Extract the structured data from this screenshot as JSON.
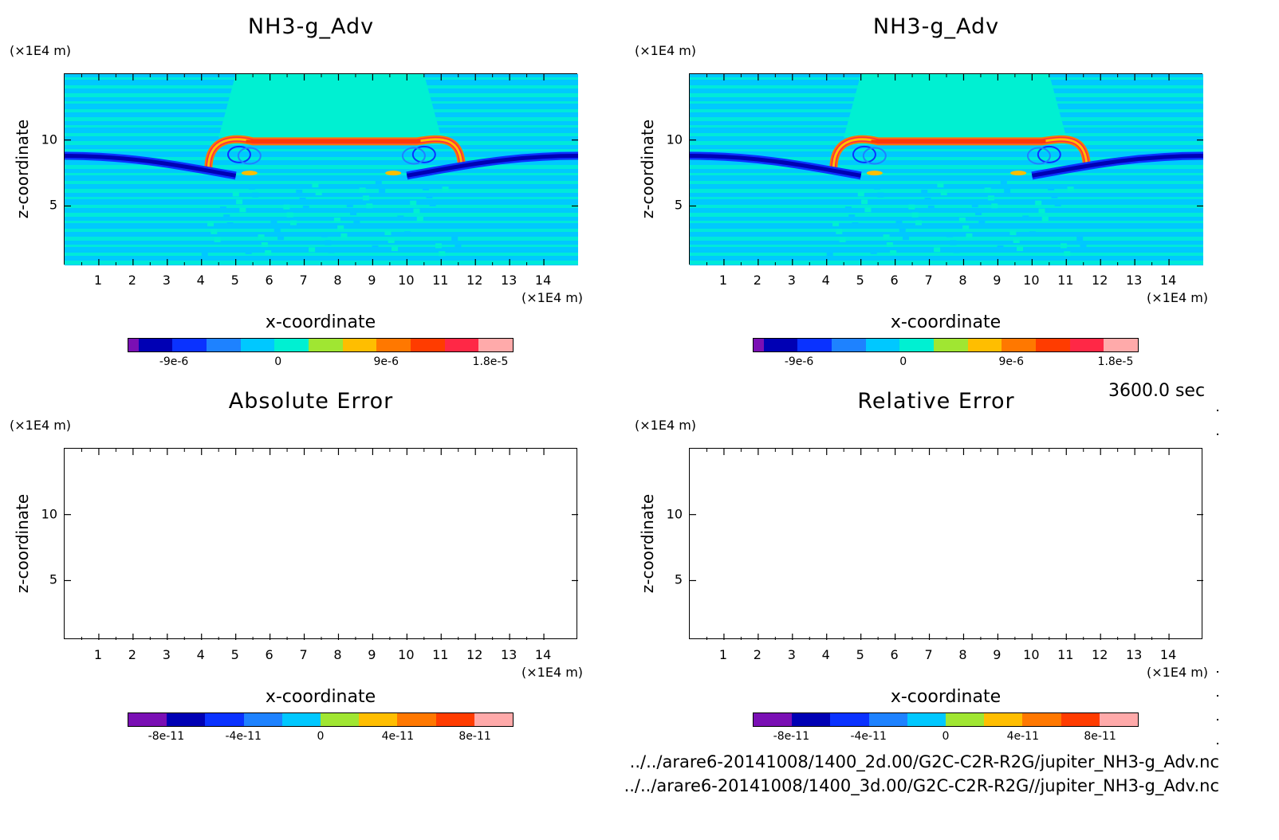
{
  "timestamp": "3600.0 sec",
  "footer_paths": [
    "../../arare6-20141008/1400_2d.00/G2C-C2R-R2G/jupiter_NH3-g_Adv.nc",
    "../../arare6-20141008/1400_3d.00/G2C-C2R-R2G//jupiter_NH3-g_Adv.nc"
  ],
  "colormap": [
    "#7a0fb4",
    "#0000b4",
    "#0a32ff",
    "#1e82ff",
    "#00c8ff",
    "#00f0d2",
    "#a0e632",
    "#ffbe00",
    "#ff7800",
    "#ff3c00",
    "#ff2846",
    "#ffaaaa"
  ],
  "chart_data": [
    {
      "type": "heatmap",
      "title": "NH3-g_Adv",
      "xlabel": "x-coordinate",
      "ylabel": "z-coordinate",
      "x_unit": "(×1E4 m)",
      "y_unit": "(×1E4 m)",
      "xlim": [
        0,
        15
      ],
      "ylim": [
        0,
        15
      ],
      "x_ticks": [
        "1",
        "2",
        "3",
        "4",
        "5",
        "6",
        "7",
        "8",
        "9",
        "10",
        "11",
        "12",
        "13",
        "14"
      ],
      "y_ticks": [
        "5",
        "10"
      ],
      "colorbar_ticks": [
        "-9e-6",
        "0",
        "9e-6",
        "1.8e-5"
      ],
      "colorbar_levels": 11,
      "field_features": "background ~0; dark blue wave band near z≈8.5 extending from edges to x≈5 and x≈10; orange-red arc ring from x≈4 to x≈12 near z≈9.5-10"
    },
    {
      "type": "heatmap",
      "title": "NH3-g_Adv",
      "xlabel": "x-coordinate",
      "ylabel": "z-coordinate",
      "x_unit": "(×1E4 m)",
      "y_unit": "(×1E4 m)",
      "xlim": [
        0,
        15
      ],
      "ylim": [
        0,
        15
      ],
      "x_ticks": [
        "1",
        "2",
        "3",
        "4",
        "5",
        "6",
        "7",
        "8",
        "9",
        "10",
        "11",
        "12",
        "13",
        "14"
      ],
      "y_ticks": [
        "5",
        "10"
      ],
      "colorbar_ticks": [
        "-9e-6",
        "0",
        "9e-6",
        "1.8e-5"
      ],
      "colorbar_levels": 11
    },
    {
      "type": "heatmap",
      "title": "Absolute Error",
      "xlabel": "x-coordinate",
      "ylabel": "z-coordinate",
      "x_unit": "(×1E4 m)",
      "y_unit": "(×1E4 m)",
      "xlim": [
        0,
        15
      ],
      "ylim": [
        0,
        15
      ],
      "x_ticks": [
        "1",
        "2",
        "3",
        "4",
        "5",
        "6",
        "7",
        "8",
        "9",
        "10",
        "11",
        "12",
        "13",
        "14"
      ],
      "y_ticks": [
        "5",
        "10"
      ],
      "colorbar_ticks": [
        "-8e-11",
        "-4e-11",
        "0",
        "4e-11",
        "8e-11"
      ],
      "colorbar_levels": 10,
      "field": "empty"
    },
    {
      "type": "heatmap",
      "title": "Relative Error",
      "xlabel": "x-coordinate",
      "ylabel": "z-coordinate",
      "x_unit": "(×1E4 m)",
      "y_unit": "(×1E4 m)",
      "xlim": [
        0,
        15
      ],
      "ylim": [
        0,
        15
      ],
      "x_ticks": [
        "1",
        "2",
        "3",
        "4",
        "5",
        "6",
        "7",
        "8",
        "9",
        "10",
        "11",
        "12",
        "13",
        "14"
      ],
      "y_ticks": [
        "5",
        "10"
      ],
      "colorbar_ticks": [
        "-8e-11",
        "-4e-11",
        "0",
        "4e-11",
        "8e-11"
      ],
      "colorbar_levels": 10,
      "field": "empty"
    }
  ]
}
